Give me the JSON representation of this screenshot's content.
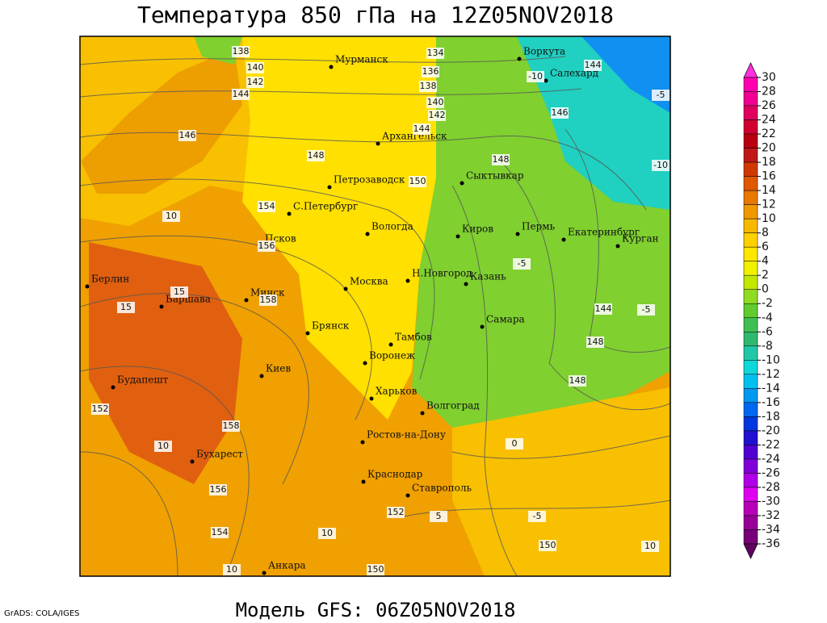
{
  "header": {
    "title": "Температура 850 гПа на 12Z05NOV2018"
  },
  "footer": {
    "model": "Модель GFS: 06Z05NOV2018",
    "credit": "GrADS: COLA/IGES"
  },
  "cities": [
    "Мурманск",
    "Воркута",
    "Салехард",
    "Архангельск",
    "Петрозаводск",
    "Сыктывкар",
    "С.Петербург",
    "Вологда",
    "Киров",
    "Пермь",
    "Екатеринбург",
    "Курган",
    "Псков",
    "Н.Новгород",
    "Берлин",
    "Москва",
    "Казань",
    "Варшава",
    "Минск",
    "Самара",
    "Брянск",
    "Тамбов",
    "Киев",
    "Воронеж",
    "Будапешт",
    "Харьков",
    "Волгоград",
    "Ростов-на-Дону",
    "Бухарест",
    "Краснодар",
    "Ставрополь",
    "Анкара"
  ],
  "isoline_labels": [
    138,
    140,
    142,
    144,
    146,
    148,
    150,
    154,
    156,
    158,
    152,
    158,
    156,
    154,
    152,
    150,
    150,
    148,
    148,
    144,
    146,
    148,
    144,
    142,
    140,
    138,
    136,
    134,
    144,
    10,
    15,
    15,
    10,
    10,
    10,
    -5,
    -10,
    -5,
    -10,
    -5,
    0,
    -5,
    5,
    10
  ],
  "colorbar": {
    "ticks": [
      30,
      28,
      26,
      24,
      22,
      20,
      18,
      16,
      14,
      12,
      10,
      8,
      6,
      4,
      2,
      0,
      -2,
      -4,
      -6,
      -8,
      -10,
      -12,
      -14,
      -16,
      -18,
      -20,
      -22,
      -24,
      -26,
      -28,
      -30,
      -32,
      -34,
      -36
    ],
    "colors": [
      "#ff30e0",
      "#ff00b0",
      "#f00090",
      "#e00060",
      "#d00030",
      "#b80010",
      "#c01818",
      "#d03800",
      "#e05800",
      "#e87800",
      "#f09800",
      "#f8b800",
      "#ffd000",
      "#ffe600",
      "#f0f000",
      "#c0e800",
      "#90dc20",
      "#60cc30",
      "#40c050",
      "#30b870",
      "#20c8a8",
      "#10d8d8",
      "#00c0f0",
      "#0098f0",
      "#0068f0",
      "#0038e0",
      "#2010d0",
      "#5000d0",
      "#8000d8",
      "#b000e8",
      "#e000f0",
      "#b800b8",
      "#980098",
      "#780078",
      "#600060"
    ]
  }
}
